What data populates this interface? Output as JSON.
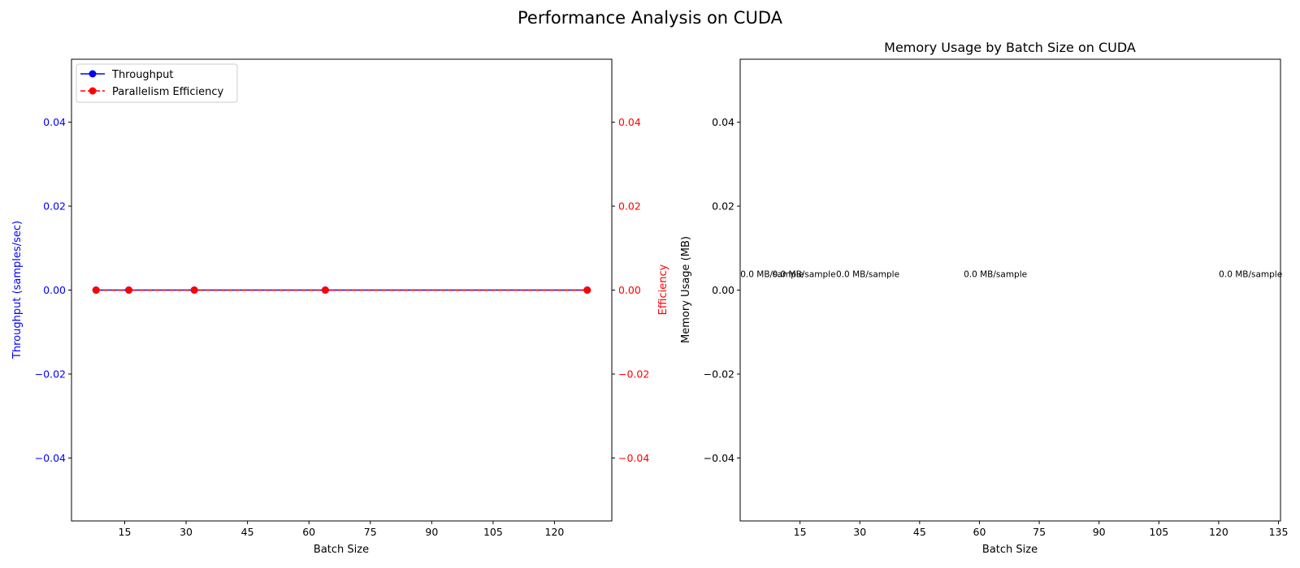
{
  "figure": {
    "title": "Performance Analysis on CUDA"
  },
  "colors": {
    "throughput": "#0000ff",
    "efficiency": "#ff0000",
    "axis": "#000000",
    "background": "#ffffff"
  },
  "chart_data": [
    {
      "type": "line",
      "title": "",
      "xlabel": "Batch Size",
      "ylabel": "Throughput (samples/sec)",
      "ylabel_right": "Efficiency",
      "xlim": [
        2.0,
        134.0
      ],
      "ylim": [
        -0.055,
        0.055
      ],
      "ylim_right": [
        -0.055,
        0.055
      ],
      "x_ticks": [
        15,
        30,
        45,
        60,
        75,
        90,
        105,
        120
      ],
      "y_ticks": [
        -0.04,
        -0.02,
        0.0,
        0.02,
        0.04
      ],
      "y_tick_labels": [
        "−0.04",
        "−0.02",
        "0.00",
        "0.02",
        "0.04"
      ],
      "y_ticks_right": [
        -0.04,
        -0.02,
        0.0,
        0.02,
        0.04
      ],
      "y_tick_labels_right": [
        "−0.04",
        "−0.02",
        "0.00",
        "0.02",
        "0.04"
      ],
      "x": [
        8,
        16,
        32,
        64,
        128
      ],
      "series": [
        {
          "name": "Throughput",
          "values": [
            0,
            0,
            0,
            0,
            0
          ],
          "color": "#0000ff",
          "linestyle": "solid",
          "marker": "circle",
          "axis": "left"
        },
        {
          "name": "Parallelism Efficiency",
          "values": [
            0,
            0,
            0,
            0,
            0
          ],
          "color": "#ff0000",
          "linestyle": "dashed",
          "marker": "circle",
          "axis": "right"
        }
      ],
      "legend_position": "upper-left",
      "grid": false
    },
    {
      "type": "bar",
      "title": "Memory Usage by Batch Size on CUDA",
      "xlabel": "Batch Size",
      "ylabel": "Memory Usage (MB)",
      "xlim": [
        0.0,
        135.5
      ],
      "ylim": [
        -0.055,
        0.055
      ],
      "x_ticks": [
        15,
        30,
        45,
        60,
        75,
        90,
        105,
        120,
        135
      ],
      "y_ticks": [
        -0.04,
        -0.02,
        0.0,
        0.02,
        0.04
      ],
      "y_tick_labels": [
        "−0.04",
        "−0.02",
        "0.00",
        "0.02",
        "0.04"
      ],
      "x": [
        8,
        16,
        32,
        64,
        128
      ],
      "values": [
        0,
        0,
        0,
        0,
        0
      ],
      "annotations": [
        "0.0 MB/sample",
        "0.0 MB/sample",
        "0.0 MB/sample",
        "0.0 MB/sample",
        "0.0 MB/sample"
      ],
      "grid": false
    }
  ]
}
